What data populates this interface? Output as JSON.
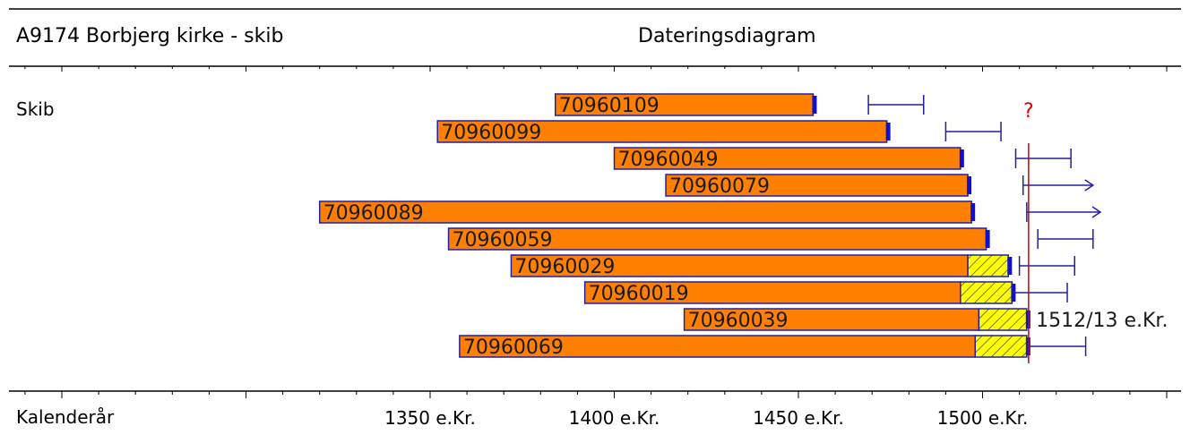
{
  "header": {
    "title": "A9174 Borbjerg kirke - skib",
    "subtitle": "Dateringsdiagram"
  },
  "group_label": "Skib",
  "footer_label": "Kalenderår",
  "felling_date_label": "1512/13 e.Kr.",
  "uncertain_marker": "?",
  "colors": {
    "bar_fill": "#ff8000",
    "bar_stroke": "#2020a0",
    "sapwood_fill": "#ffff00",
    "interval": "#2020a0",
    "felling_line": "#cc0000",
    "question": "#dd0000"
  },
  "chart_data": {
    "type": "bar",
    "orientation": "horizontal",
    "title": "Dateringsdiagram",
    "xlabel": "Kalenderår",
    "xlim": [
      1290,
      1555
    ],
    "x_ticks": [
      {
        "value": 1350,
        "label": "1350 e.Kr."
      },
      {
        "value": 1400,
        "label": "1400 e.Kr."
      },
      {
        "value": 1450,
        "label": "1450 e.Kr."
      },
      {
        "value": 1500,
        "label": "1500 e.Kr."
      }
    ],
    "felling_year": 1512.5,
    "samples": [
      {
        "id": "70960109",
        "start": 1384,
        "end": 1454,
        "sapwood_end": null,
        "interval": [
          1469,
          1484
        ],
        "arrow": false
      },
      {
        "id": "70960099",
        "start": 1352,
        "end": 1474,
        "sapwood_end": null,
        "interval": [
          1490,
          1505
        ],
        "arrow": false
      },
      {
        "id": "70960049",
        "start": 1400,
        "end": 1494,
        "sapwood_end": null,
        "interval": [
          1509,
          1524
        ],
        "arrow": false
      },
      {
        "id": "70960079",
        "start": 1414,
        "end": 1496,
        "sapwood_end": null,
        "interval": [
          1511,
          1530
        ],
        "arrow": true
      },
      {
        "id": "70960089",
        "start": 1320,
        "end": 1497,
        "sapwood_end": null,
        "interval": [
          1512,
          1532
        ],
        "arrow": true
      },
      {
        "id": "70960059",
        "start": 1355,
        "end": 1501,
        "sapwood_end": null,
        "interval": [
          1515,
          1530
        ],
        "arrow": false
      },
      {
        "id": "70960029",
        "start": 1372,
        "end": 1496,
        "sapwood_end": 1507,
        "interval": [
          1510,
          1525
        ],
        "arrow": false
      },
      {
        "id": "70960019",
        "start": 1392,
        "end": 1494,
        "sapwood_end": 1508,
        "interval": [
          1508,
          1523
        ],
        "arrow": false
      },
      {
        "id": "70960039",
        "start": 1419,
        "end": 1499,
        "sapwood_end": 1512,
        "interval": null,
        "arrow": false
      },
      {
        "id": "70960069",
        "start": 1358,
        "end": 1498,
        "sapwood_end": 1512,
        "interval": [
          1512,
          1528
        ],
        "arrow": false
      }
    ]
  }
}
